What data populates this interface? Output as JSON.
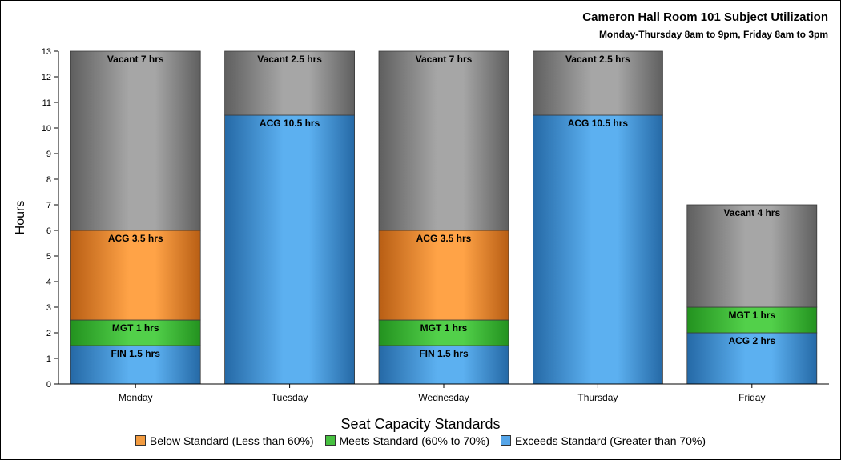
{
  "chart_data": {
    "type": "bar",
    "stacked": true,
    "title": "Cameron Hall Room 101 Subject Utilization",
    "subtitle": "Monday-Thursday 8am to 9pm, Friday 8am to 3pm",
    "ylabel": "Hours",
    "ylim": [
      0,
      13
    ],
    "yticks": [
      "0",
      "1",
      "2",
      "3",
      "4",
      "5",
      "6",
      "7",
      "8",
      "9",
      "10",
      "11",
      "12",
      "13"
    ],
    "categories": [
      "Monday",
      "Tuesday",
      "Wednesday",
      "Thursday",
      "Friday"
    ],
    "bars": [
      {
        "category": "Monday",
        "segments": [
          {
            "label": "FIN 1.5 hrs",
            "value": 1.5,
            "kind": "exceeds"
          },
          {
            "label": "MGT 1 hrs",
            "value": 1,
            "kind": "meets"
          },
          {
            "label": "ACG 3.5 hrs",
            "value": 3.5,
            "kind": "below"
          },
          {
            "label": "Vacant 7 hrs",
            "value": 7,
            "kind": "vacant"
          }
        ]
      },
      {
        "category": "Tuesday",
        "segments": [
          {
            "label": "ACG 10.5 hrs",
            "value": 10.5,
            "kind": "exceeds"
          },
          {
            "label": "Vacant 2.5 hrs",
            "value": 2.5,
            "kind": "vacant"
          }
        ]
      },
      {
        "category": "Wednesday",
        "segments": [
          {
            "label": "FIN 1.5 hrs",
            "value": 1.5,
            "kind": "exceeds"
          },
          {
            "label": "MGT 1 hrs",
            "value": 1,
            "kind": "meets"
          },
          {
            "label": "ACG 3.5 hrs",
            "value": 3.5,
            "kind": "below"
          },
          {
            "label": "Vacant 7 hrs",
            "value": 7,
            "kind": "vacant"
          }
        ]
      },
      {
        "category": "Thursday",
        "segments": [
          {
            "label": "ACG 10.5 hrs",
            "value": 10.5,
            "kind": "exceeds"
          },
          {
            "label": "Vacant 2.5 hrs",
            "value": 2.5,
            "kind": "vacant"
          }
        ]
      },
      {
        "category": "Friday",
        "segments": [
          {
            "label": "ACG 2 hrs",
            "value": 2,
            "kind": "exceeds"
          },
          {
            "label": "MGT 1 hrs",
            "value": 1,
            "kind": "meets"
          },
          {
            "label": "Vacant 4 hrs",
            "value": 4,
            "kind": "vacant"
          }
        ]
      }
    ],
    "legend": {
      "title": "Seat Capacity Standards",
      "placement": "bottom",
      "items": [
        {
          "label": "Below Standard (Less than 60%)",
          "kind": "below"
        },
        {
          "label": "Meets Standard (60% to 70%)",
          "kind": "meets"
        },
        {
          "label": "Exceeds Standard (Greater than 70%)",
          "kind": "exceeds"
        }
      ]
    },
    "colors": {
      "below": {
        "light": "#ffa347",
        "dark": "#b85e14",
        "swatch": "#f29b40"
      },
      "meets": {
        "light": "#52d04a",
        "dark": "#23921f",
        "swatch": "#47c040"
      },
      "exceeds": {
        "light": "#5cb0f0",
        "dark": "#2569a6",
        "swatch": "#55a5e8"
      },
      "vacant": {
        "light": "#a6a6a6",
        "dark": "#5f5f5f",
        "swatch": "#8f8f8f"
      }
    }
  }
}
